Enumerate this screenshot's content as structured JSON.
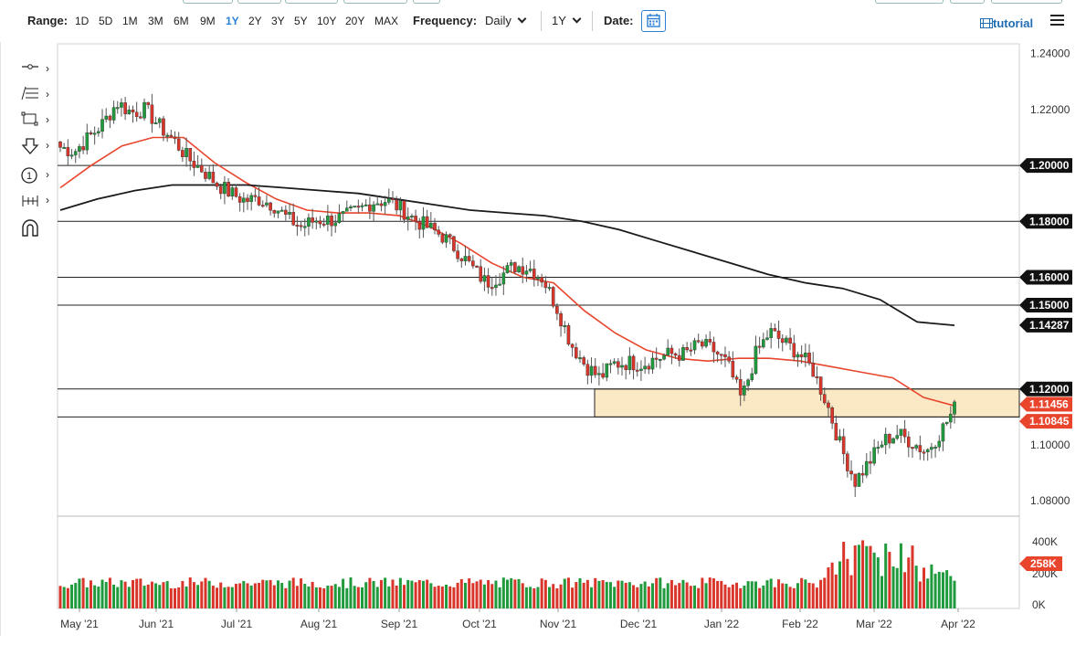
{
  "toolbar": {
    "range_label": "Range:",
    "ranges": [
      "1D",
      "5D",
      "1M",
      "3M",
      "6M",
      "9M",
      "1Y",
      "2Y",
      "3Y",
      "5Y",
      "10Y",
      "20Y",
      "MAX"
    ],
    "active_range": "1Y",
    "frequency_label": "Frequency:",
    "frequency_value": "Daily",
    "period_value": "1Y",
    "date_label": "Date:",
    "tutorial_label": "tutorial"
  },
  "colors": {
    "up": "#1f9a3c",
    "down": "#d9352a",
    "ma_short": "#e8452c",
    "ma_long": "#1a1a1a",
    "zone_fill": "#fbe8c4",
    "accent": "#2a7fd4"
  },
  "tools": [
    "line-tool-icon",
    "fib-tool-icon",
    "rectangle-tool-icon",
    "arrow-tool-icon",
    "count-tool-icon",
    "measure-tool-icon",
    "magnet-icon"
  ],
  "chart_data": {
    "type": "candlestick",
    "instrument_axis": "price",
    "y_ticks": [
      "1.24000",
      "1.22000",
      "1.20000",
      "1.18000",
      "1.16000",
      "1.15000",
      "1.14287",
      "1.12000",
      "1.11456",
      "1.10845",
      "1.10000",
      "1.08000"
    ],
    "y_tick_values": [
      1.24,
      1.22,
      1.2,
      1.18,
      1.16,
      1.15,
      1.14287,
      1.12,
      1.11456,
      1.10845,
      1.1,
      1.08
    ],
    "ylim": [
      1.0745,
      1.2435
    ],
    "x_labels": [
      "May '21",
      "Jun '21",
      "Jul '21",
      "Aug '21",
      "Sep '21",
      "Oct '21",
      "Nov '21",
      "Dec '21",
      "Jan '22",
      "Feb '22",
      "Mar '22",
      "Apr '22"
    ],
    "horizontal_lines": [
      1.2,
      1.18,
      1.16,
      1.15,
      1.12,
      1.11
    ],
    "zone": {
      "low": 1.11,
      "high": 1.12,
      "start": "Nov '21"
    },
    "badges": [
      {
        "label": "1.20000",
        "value": 1.2,
        "color": "#111111"
      },
      {
        "label": "1.18000",
        "value": 1.18,
        "color": "#111111"
      },
      {
        "label": "1.16000",
        "value": 1.16,
        "color": "#111111"
      },
      {
        "label": "1.15000",
        "value": 1.15,
        "color": "#111111"
      },
      {
        "label": "1.14287",
        "value": 1.14287,
        "color": "#111111"
      },
      {
        "label": "1.12000",
        "value": 1.12,
        "color": "#111111"
      },
      {
        "label": "1.11456",
        "value": 1.11456,
        "color": "#e8452c"
      },
      {
        "label": "1.10845",
        "value": 1.10845,
        "color": "#e8452c"
      }
    ],
    "price_path": [
      [
        1.208,
        1.205
      ],
      [
        1.21,
        1.2
      ],
      [
        1.215,
        1.205
      ],
      [
        1.212,
        1.218
      ],
      [
        1.22,
        1.225
      ],
      [
        1.222,
        1.216
      ],
      [
        1.218,
        1.222
      ],
      [
        1.216,
        1.212
      ],
      [
        1.212,
        1.206
      ],
      [
        1.205,
        1.2
      ],
      [
        1.202,
        1.195
      ],
      [
        1.196,
        1.191
      ],
      [
        1.193,
        1.187
      ],
      [
        1.189,
        1.186
      ],
      [
        1.186,
        1.19
      ],
      [
        1.189,
        1.183
      ],
      [
        1.182,
        1.18
      ],
      [
        1.178,
        1.178
      ],
      [
        1.179,
        1.182
      ],
      [
        1.181,
        1.18
      ],
      [
        1.18,
        1.183
      ],
      [
        1.184,
        1.184
      ],
      [
        1.185,
        1.189
      ],
      [
        1.188,
        1.187
      ],
      [
        1.187,
        1.182
      ],
      [
        1.183,
        1.178
      ],
      [
        1.179,
        1.176
      ],
      [
        1.176,
        1.173
      ],
      [
        1.171,
        1.168
      ],
      [
        1.165,
        1.162
      ],
      [
        1.158,
        1.158
      ],
      [
        1.159,
        1.162
      ],
      [
        1.163,
        1.165
      ],
      [
        1.164,
        1.163
      ],
      [
        1.162,
        1.157
      ],
      [
        1.153,
        1.145
      ],
      [
        1.14,
        1.132
      ],
      [
        1.13,
        1.127
      ],
      [
        1.127,
        1.121
      ],
      [
        1.128,
        1.13
      ],
      [
        1.13,
        1.129
      ],
      [
        1.128,
        1.13
      ],
      [
        1.131,
        1.131
      ],
      [
        1.132,
        1.133
      ],
      [
        1.133,
        1.132
      ],
      [
        1.134,
        1.138
      ],
      [
        1.137,
        1.131
      ],
      [
        1.128,
        1.13
      ],
      [
        1.12,
        1.112
      ],
      [
        1.126,
        1.139
      ],
      [
        1.141,
        1.14
      ],
      [
        1.138,
        1.135
      ],
      [
        1.134,
        1.132
      ],
      [
        1.13,
        1.124
      ],
      [
        1.118,
        1.112
      ],
      [
        1.104,
        1.094
      ],
      [
        1.09,
        1.084
      ],
      [
        1.092,
        1.096
      ],
      [
        1.099,
        1.104
      ],
      [
        1.105,
        1.103
      ],
      [
        1.102,
        1.1
      ],
      [
        1.098,
        1.097
      ],
      [
        1.099,
        1.11
      ],
      [
        1.112,
        1.114
      ]
    ],
    "ma50": [
      1.192,
      1.2,
      1.207,
      1.21,
      1.21,
      1.201,
      1.194,
      1.188,
      1.184,
      1.183,
      1.183,
      1.182,
      1.178,
      1.172,
      1.165,
      1.16,
      1.158,
      1.148,
      1.14,
      1.134,
      1.131,
      1.13,
      1.131,
      1.131,
      1.13,
      1.128,
      1.126,
      1.124,
      1.117,
      1.114
    ],
    "ma200": [
      1.184,
      1.188,
      1.191,
      1.193,
      1.193,
      1.193,
      1.192,
      1.191,
      1.19,
      1.188,
      1.186,
      1.184,
      1.183,
      1.182,
      1.18,
      1.177,
      1.173,
      1.169,
      1.165,
      1.161,
      1.158,
      1.156,
      1.152,
      1.144,
      1.1428
    ],
    "volume_ticks": [
      "400K",
      "200K",
      "0K"
    ],
    "volume_badge": "258K",
    "volume_max": 520000
  }
}
